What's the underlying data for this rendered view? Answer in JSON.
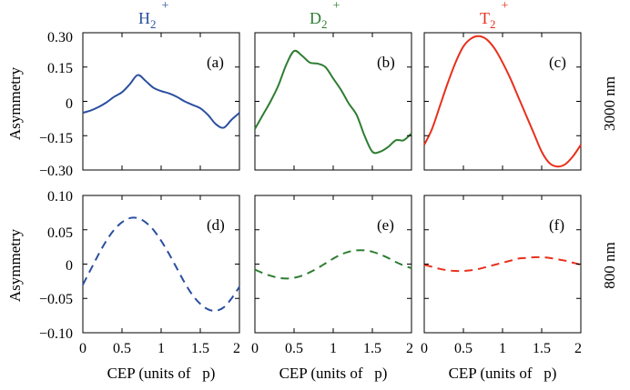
{
  "figure": {
    "column_titles": [
      {
        "base": "H",
        "sub": "2",
        "sup": "+",
        "color": "#2b4fa0"
      },
      {
        "base": "D",
        "sub": "2",
        "sup": "+",
        "color": "#2e7d32"
      },
      {
        "base": "T",
        "sub": "2",
        "sup": "+",
        "color": "#e8301c"
      }
    ],
    "row_labels": [
      "3000 nm",
      "800 nm"
    ],
    "ylabel": "Asymmetry",
    "xlabel": "CEP (units of   p)"
  },
  "chart_data": [
    {
      "type": "line",
      "panel": "(a)",
      "ion": "H2+",
      "wavelength": "3000 nm",
      "style": "solid",
      "color": "#2b4fa0",
      "x": [
        0,
        0.1,
        0.2,
        0.3,
        0.4,
        0.5,
        0.6,
        0.7,
        0.8,
        0.9,
        1.0,
        1.1,
        1.2,
        1.3,
        1.4,
        1.5,
        1.6,
        1.7,
        1.8,
        1.9,
        2.0
      ],
      "y": [
        -0.05,
        -0.04,
        -0.025,
        -0.005,
        0.02,
        0.04,
        0.075,
        0.115,
        0.09,
        0.06,
        0.045,
        0.035,
        0.02,
        0.0,
        -0.015,
        -0.03,
        -0.06,
        -0.1,
        -0.115,
        -0.08,
        -0.05
      ],
      "ylim": [
        -0.3,
        0.3
      ],
      "xlim": [
        0,
        2
      ]
    },
    {
      "type": "line",
      "panel": "(b)",
      "ion": "D2+",
      "wavelength": "3000 nm",
      "style": "solid",
      "color": "#2e7d32",
      "x": [
        0,
        0.1,
        0.2,
        0.3,
        0.4,
        0.5,
        0.6,
        0.7,
        0.8,
        0.9,
        1.0,
        1.1,
        1.2,
        1.3,
        1.4,
        1.5,
        1.6,
        1.7,
        1.8,
        1.9,
        2.0
      ],
      "y": [
        -0.12,
        -0.06,
        0.0,
        0.07,
        0.16,
        0.22,
        0.2,
        0.17,
        0.165,
        0.15,
        0.1,
        0.05,
        -0.01,
        -0.06,
        -0.15,
        -0.22,
        -0.22,
        -0.2,
        -0.17,
        -0.17,
        -0.14
      ],
      "ylim": [
        -0.3,
        0.3
      ],
      "xlim": [
        0,
        2
      ]
    },
    {
      "type": "line",
      "panel": "(c)",
      "ion": "T2+",
      "wavelength": "3000 nm",
      "style": "solid",
      "color": "#e8301c",
      "x": [
        0,
        0.1,
        0.2,
        0.3,
        0.4,
        0.5,
        0.6,
        0.7,
        0.8,
        0.9,
        1.0,
        1.1,
        1.2,
        1.3,
        1.4,
        1.5,
        1.6,
        1.7,
        1.8,
        1.9,
        2.0
      ],
      "y": [
        -0.19,
        -0.12,
        -0.02,
        0.08,
        0.17,
        0.24,
        0.275,
        0.285,
        0.27,
        0.23,
        0.17,
        0.1,
        0.02,
        -0.06,
        -0.14,
        -0.22,
        -0.27,
        -0.285,
        -0.275,
        -0.24,
        -0.19
      ],
      "ylim": [
        -0.3,
        0.3
      ],
      "xlim": [
        0,
        2
      ]
    },
    {
      "type": "line",
      "panel": "(d)",
      "ion": "H2+",
      "wavelength": "800 nm",
      "style": "dashed",
      "color": "#2b4fa0",
      "x": [
        0,
        0.1,
        0.2,
        0.3,
        0.4,
        0.5,
        0.6,
        0.7,
        0.8,
        0.9,
        1.0,
        1.1,
        1.2,
        1.3,
        1.4,
        1.5,
        1.6,
        1.7,
        1.8,
        1.9,
        2.0
      ],
      "y": [
        -0.03,
        -0.008,
        0.014,
        0.034,
        0.05,
        0.061,
        0.067,
        0.067,
        0.061,
        0.05,
        0.034,
        0.015,
        -0.006,
        -0.027,
        -0.045,
        -0.058,
        -0.066,
        -0.068,
        -0.063,
        -0.05,
        -0.033
      ],
      "ylim": [
        -0.1,
        0.1
      ],
      "xlim": [
        0,
        2
      ]
    },
    {
      "type": "line",
      "panel": "(e)",
      "ion": "D2+",
      "wavelength": "800 nm",
      "style": "dashed",
      "color": "#2e7d32",
      "x": [
        0,
        0.1,
        0.2,
        0.3,
        0.4,
        0.5,
        0.6,
        0.7,
        0.8,
        0.9,
        1.0,
        1.1,
        1.2,
        1.3,
        1.4,
        1.5,
        1.6,
        1.7,
        1.8,
        1.9,
        2.0
      ],
      "y": [
        -0.008,
        -0.013,
        -0.017,
        -0.02,
        -0.021,
        -0.02,
        -0.017,
        -0.012,
        -0.006,
        0.001,
        0.008,
        0.014,
        0.018,
        0.02,
        0.02,
        0.018,
        0.014,
        0.009,
        0.003,
        -0.002,
        -0.006
      ],
      "ylim": [
        -0.1,
        0.1
      ],
      "xlim": [
        0,
        2
      ]
    },
    {
      "type": "line",
      "panel": "(f)",
      "ion": "T2+",
      "wavelength": "800 nm",
      "style": "dashed",
      "color": "#e8301c",
      "x": [
        0,
        0.1,
        0.2,
        0.3,
        0.4,
        0.5,
        0.6,
        0.7,
        0.8,
        0.9,
        1.0,
        1.1,
        1.2,
        1.3,
        1.4,
        1.5,
        1.6,
        1.7,
        1.8,
        1.9,
        2.0
      ],
      "y": [
        -0.001,
        -0.004,
        -0.007,
        -0.009,
        -0.01,
        -0.01,
        -0.009,
        -0.007,
        -0.004,
        -0.001,
        0.002,
        0.005,
        0.008,
        0.009,
        0.01,
        0.01,
        0.009,
        0.007,
        0.005,
        0.002,
        -0.001
      ],
      "ylim": [
        -0.1,
        0.1
      ],
      "xlim": [
        0,
        2
      ]
    }
  ],
  "axes": {
    "top_yticks": [
      "0.30",
      "0.15",
      "0",
      "−0.15",
      "−0.30"
    ],
    "top_ytick_values": [
      0.3,
      0.15,
      0,
      -0.15,
      -0.3
    ],
    "bottom_yticks": [
      "0.10",
      "0.05",
      "0",
      "−0.05",
      "−0.10"
    ],
    "bottom_ytick_values": [
      0.1,
      0.05,
      0,
      -0.05,
      -0.1
    ],
    "xticks": [
      "0",
      "0.5",
      "1",
      "1.5",
      "2"
    ],
    "xtick_values": [
      0,
      0.5,
      1,
      1.5,
      2
    ]
  }
}
